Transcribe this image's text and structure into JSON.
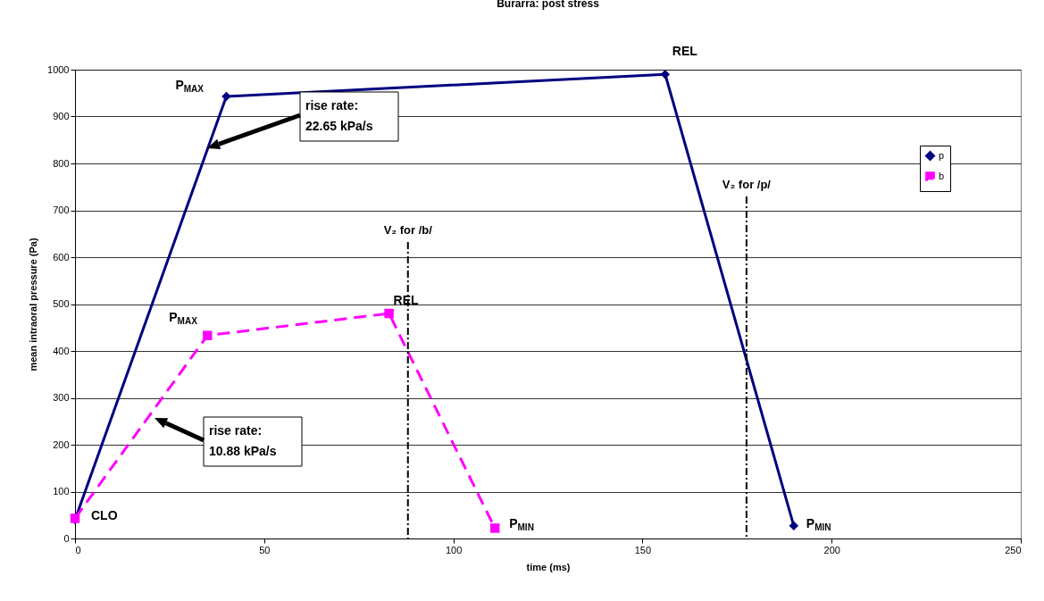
{
  "chart_data": {
    "type": "line",
    "title": "Burarra: post stress",
    "xlabel": "time (ms)",
    "ylabel": "mean intraoral pressure (Pa)",
    "series": [
      {
        "name": "p",
        "color": "#000080",
        "marker": "diamond",
        "line_style": "solid",
        "x": [
          0,
          40,
          156,
          190
        ],
        "values": [
          40,
          943,
          990,
          27
        ]
      },
      {
        "name": "b",
        "color": "#ff00ff",
        "marker": "square",
        "line_style": "dashed",
        "x": [
          0,
          35,
          83,
          111
        ],
        "values": [
          43,
          433,
          480,
          22
        ]
      }
    ],
    "xlim": [
      0,
      250
    ],
    "xticks": [
      0,
      50,
      100,
      150,
      200,
      250
    ],
    "ylim": [
      0,
      1000
    ],
    "yticks": [
      0,
      100,
      200,
      300,
      400,
      500,
      600,
      700,
      800,
      900,
      1000
    ],
    "ref_lines": [
      {
        "axis": "x",
        "value": 88,
        "label": "V₂ for /b/",
        "line_style": "dashdot"
      },
      {
        "axis": "x",
        "value": 177.5,
        "label": "V₂ for /p/",
        "line_style": "dashdot"
      }
    ],
    "annotations": [
      {
        "text": "P$_{MAX}$",
        "x": 40,
        "y": 943
      },
      {
        "text": "REL",
        "x": 156,
        "y": 990
      },
      {
        "text": "P$_{MIN}$",
        "x": 190,
        "y": 27
      },
      {
        "text": "P$_{MAX}$",
        "x": 35,
        "y": 433
      },
      {
        "text": "REL",
        "x": 83,
        "y": 480
      },
      {
        "text": "P$_{MIN}$",
        "x": 111,
        "y": 22
      },
      {
        "text": "CLO",
        "x": 0,
        "y": 43
      },
      "rise rate:\n22.65 kPa/s",
      "rise rate:\n10.88 kPa/s"
    ],
    "grid": "y",
    "legend": "right"
  }
}
